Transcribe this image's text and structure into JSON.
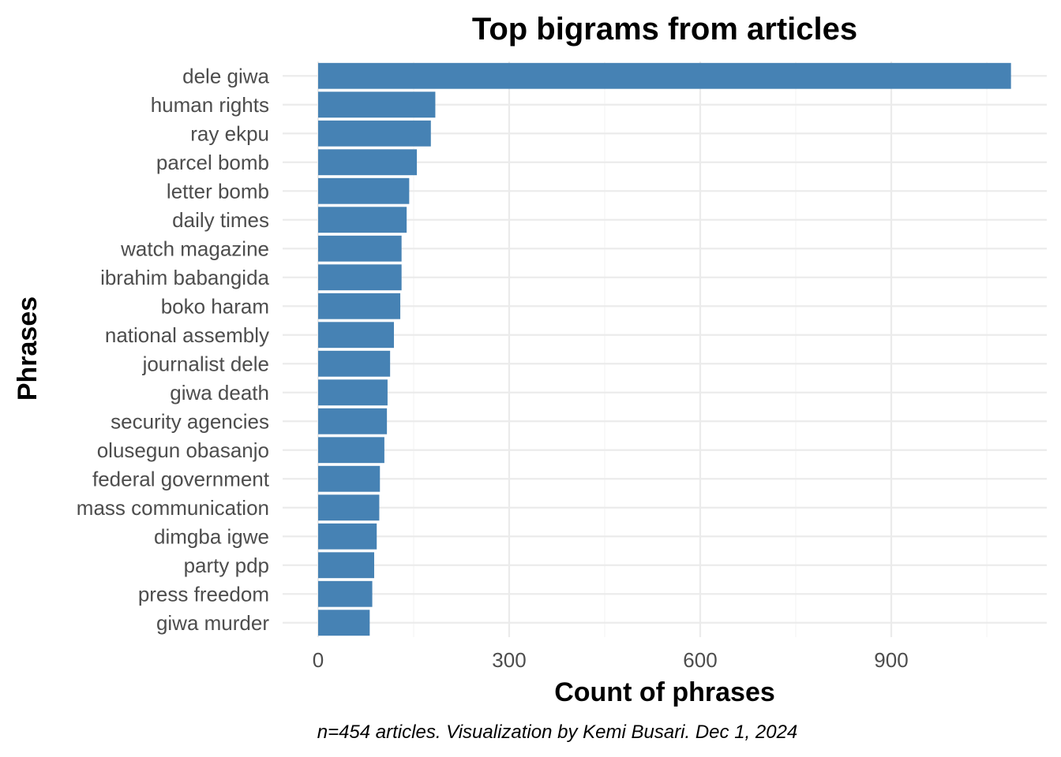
{
  "chart_data": {
    "type": "bar",
    "orientation": "horizontal",
    "title": "Top bigrams from articles",
    "xlabel": "Count of phrases",
    "ylabel": "Phrases",
    "caption": "n=454 articles. Visualization by Kemi Busari. Dec 1, 2024",
    "categories": [
      "dele giwa",
      "human rights",
      "ray ekpu",
      "parcel bomb",
      "letter bomb",
      "daily times",
      "watch magazine",
      "ibrahim babangida",
      "boko haram",
      "national assembly",
      "journalist dele",
      "giwa death",
      "security agencies",
      "olusegun obasanjo",
      "federal government",
      "mass communication",
      "dimgba igwe",
      "party pdp",
      "press freedom",
      "giwa murder"
    ],
    "values": [
      1088,
      184,
      177,
      155,
      143,
      139,
      131,
      131,
      129,
      119,
      113,
      109,
      108,
      104,
      97,
      96,
      92,
      88,
      85,
      81
    ],
    "x_ticks": [
      0,
      300,
      600,
      900
    ],
    "x_tick_labels": [
      "0",
      "300",
      "600",
      "900"
    ],
    "xlim": [
      -55,
      1142
    ],
    "grid": true,
    "bar_color": "#4682b4"
  }
}
